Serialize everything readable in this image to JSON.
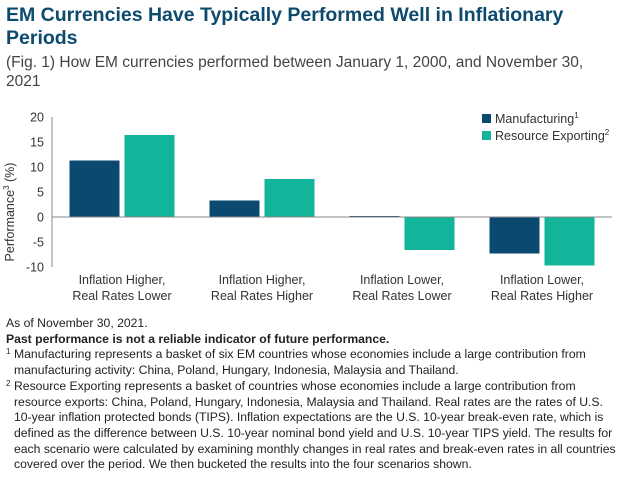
{
  "header": {
    "title": "EM Currencies Have Typically Performed Well in Inflationary Periods",
    "subtitle": "(Fig. 1) How EM currencies performed between January 1, 2000, and November 30, 2021"
  },
  "chart_data": {
    "type": "bar",
    "categories": [
      [
        "Inflation Higher,",
        "Real Rates Lower"
      ],
      [
        "Inflation Higher,",
        "Real Rates Higher"
      ],
      [
        "Inflation Lower,",
        "Real Rates Lower"
      ],
      [
        "Inflation Lower,",
        "Real Rates Higher"
      ]
    ],
    "series": [
      {
        "name": "Manufacturing",
        "name_sup": "1",
        "color": "#0a4a70",
        "values": [
          11.3,
          3.3,
          0.2,
          -7.3
        ]
      },
      {
        "name": "Resource Exporting",
        "name_sup": "2",
        "color": "#12b59a",
        "values": [
          16.4,
          7.6,
          -6.6,
          -9.7
        ]
      }
    ],
    "ylabel": "Performance",
    "ylabel_sup": "3",
    "ylabel_unit": " (%)",
    "ylim": [
      -10,
      20
    ],
    "yticks": [
      -10,
      -5,
      0,
      5,
      10,
      15,
      20
    ],
    "grid": false,
    "legend_position": "top-right"
  },
  "notes": {
    "as_of": "As of November 30, 2021.",
    "disclaimer": "Past performance is not a reliable indicator of future performance.",
    "footnote1_marker": "1",
    "footnote1": "Manufacturing represents a basket of six EM countries whose economies include a large contribution from manufacturing activity: China, Poland, Hungary, Indonesia, Malaysia and Thailand.",
    "footnote2_marker": "2",
    "footnote2": "Resource Exporting represents a basket of countries whose economies include a large contribution from resource exports: China, Poland, Hungary, Indonesia, Malaysia and Thailand. Real rates are the rates of U.S. 10-year inflation protected bonds (TIPS). Inflation expectations are the U.S. 10-year break-even rate, which is defined as the difference between U.S. 10-year nominal bond yield and U.S. 10-year TIPS yield. The results for each scenario were calculated by examining monthly changes in real rates and break-even rates in all countries covered over the period. We then bucketed the results into the four scenarios shown."
  }
}
